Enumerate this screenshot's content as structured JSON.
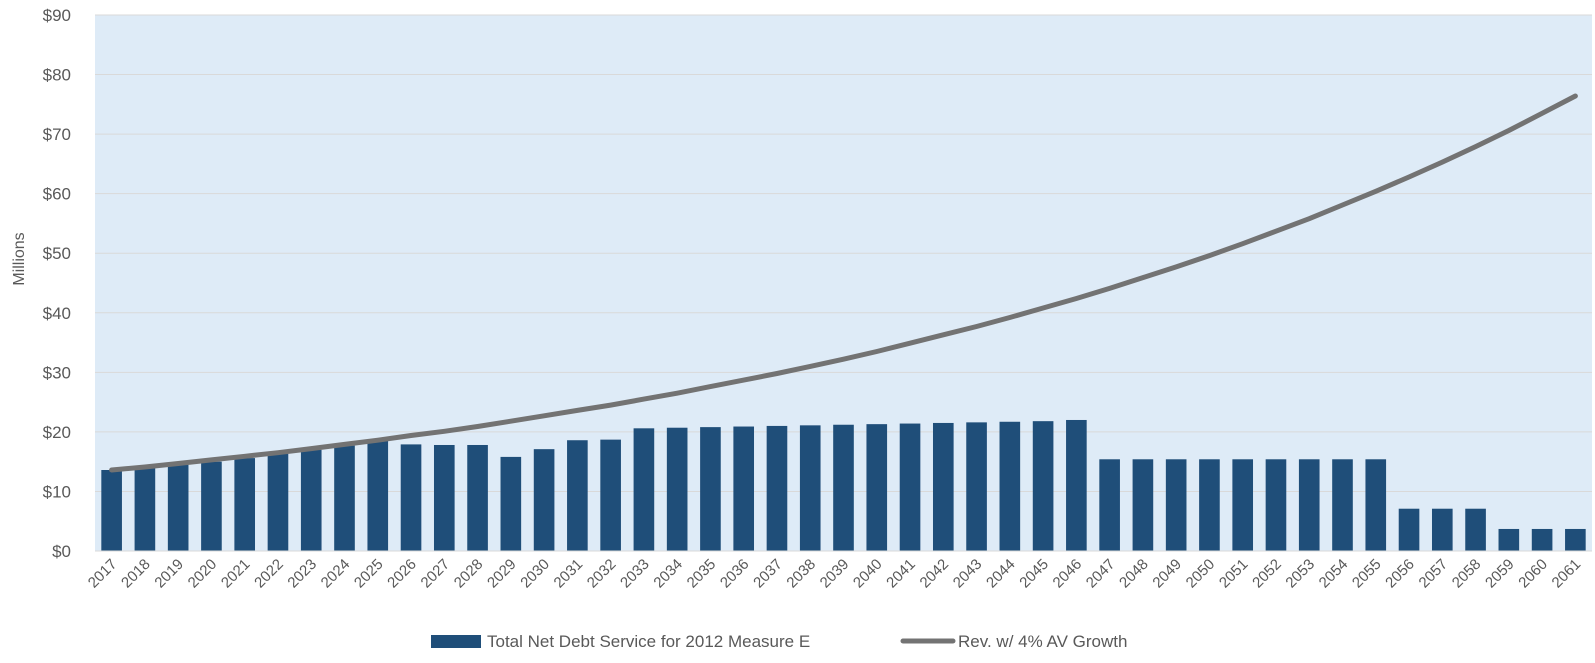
{
  "chart_data": {
    "type": "bar",
    "title": "",
    "xlabel": "",
    "ylabel": "Millions",
    "ylim": [
      0,
      90
    ],
    "yticks": [
      "$0",
      "$10",
      "$20",
      "$30",
      "$40",
      "$50",
      "$60",
      "$70",
      "$80",
      "$90"
    ],
    "yticks_values": [
      0,
      10,
      20,
      30,
      40,
      50,
      60,
      70,
      80,
      90
    ],
    "categories": [
      "2017",
      "2018",
      "2019",
      "2020",
      "2021",
      "2022",
      "2023",
      "2024",
      "2025",
      "2026",
      "2027",
      "2028",
      "2029",
      "2030",
      "2031",
      "2032",
      "2033",
      "2034",
      "2035",
      "2036",
      "2037",
      "2038",
      "2039",
      "2040",
      "2041",
      "2042",
      "2043",
      "2044",
      "2045",
      "2046",
      "2047",
      "2048",
      "2049",
      "2050",
      "2051",
      "2052",
      "2053",
      "2054",
      "2055",
      "2056",
      "2057",
      "2058",
      "2059",
      "2060",
      "2061"
    ],
    "grid": true,
    "legend_position": "bottom",
    "series": [
      {
        "name": "Total Net Debt Service for 2012 Measure E",
        "type": "bar",
        "color": "#1f4e79",
        "values": [
          13.6,
          14.0,
          14.5,
          15.0,
          15.6,
          16.3,
          17.0,
          17.7,
          18.5,
          17.9,
          17.8,
          17.8,
          15.8,
          17.1,
          18.6,
          18.7,
          20.6,
          20.7,
          20.8,
          20.9,
          21.0,
          21.1,
          21.2,
          21.3,
          21.4,
          21.5,
          21.6,
          21.7,
          21.8,
          22.0,
          15.4,
          15.4,
          15.4,
          15.4,
          15.4,
          15.4,
          15.4,
          15.4,
          15.4,
          7.1,
          7.1,
          7.1,
          3.7,
          3.7,
          3.7
        ]
      },
      {
        "name": "Rev. w/ 4% AV Growth",
        "type": "line",
        "color": "#737373",
        "values": [
          13.6,
          14.1,
          14.7,
          15.3,
          15.9,
          16.5,
          17.2,
          17.9,
          18.6,
          19.4,
          20.1,
          20.9,
          21.8,
          22.7,
          23.6,
          24.5,
          25.5,
          26.5,
          27.6,
          28.7,
          29.8,
          31.0,
          32.2,
          33.5,
          34.9,
          36.3,
          37.7,
          39.2,
          40.8,
          42.4,
          44.1,
          45.9,
          47.7,
          49.6,
          51.6,
          53.7,
          55.8,
          58.1,
          60.4,
          62.8,
          65.3,
          67.9,
          70.6,
          73.5,
          76.4
        ]
      }
    ]
  },
  "legend": {
    "bar_label": "Total Net Debt Service for 2012 Measure E",
    "line_label": "Rev. w/ 4% AV Growth"
  }
}
